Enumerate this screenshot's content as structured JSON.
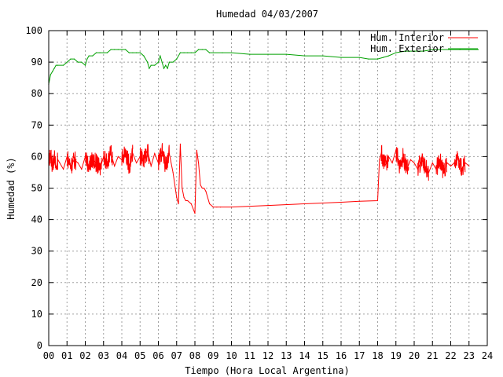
{
  "chart_data": {
    "type": "line",
    "title": "Humedad 04/03/2007",
    "xlabel": "Tiempo (Hora Local Argentina)",
    "ylabel": "Humedad (%)",
    "xlim": [
      0,
      24
    ],
    "ylim": [
      0,
      100
    ],
    "x_ticks": [
      "00",
      "01",
      "02",
      "03",
      "04",
      "05",
      "06",
      "07",
      "08",
      "09",
      "10",
      "11",
      "12",
      "13",
      "14",
      "15",
      "16",
      "17",
      "18",
      "19",
      "20",
      "21",
      "22",
      "23",
      "24"
    ],
    "y_ticks": [
      "0",
      "10",
      "20",
      "30",
      "40",
      "50",
      "60",
      "70",
      "80",
      "90",
      "100"
    ],
    "grid": true,
    "legend_position": "top-right",
    "series": [
      {
        "name": "Hum. Interior",
        "color": "#ff0000",
        "x": [
          0.0,
          0.1,
          0.2,
          0.3,
          0.4,
          0.5,
          0.6,
          0.8,
          1.0,
          1.2,
          1.4,
          1.6,
          1.8,
          2.0,
          2.2,
          2.4,
          2.6,
          2.8,
          3.0,
          3.2,
          3.4,
          3.6,
          3.8,
          4.0,
          4.2,
          4.4,
          4.6,
          4.8,
          5.0,
          5.2,
          5.4,
          5.6,
          5.8,
          6.0,
          6.2,
          6.4,
          6.6,
          6.8,
          7.0,
          7.1,
          7.2,
          7.3,
          7.4,
          7.5,
          7.6,
          7.8,
          8.0,
          8.1,
          8.2,
          8.3,
          8.4,
          8.5,
          8.6,
          8.8,
          9.0,
          9.2,
          9.4,
          10.0,
          12.0,
          14.0,
          16.0,
          17.0,
          18.0,
          18.1,
          18.2,
          18.4,
          18.6,
          18.8,
          19.0,
          19.2,
          19.4,
          19.6,
          19.8,
          20.0,
          20.2,
          20.4,
          20.6,
          20.8,
          21.0,
          21.2,
          21.4,
          21.6,
          21.8,
          22.0,
          22.2,
          22.4,
          22.6,
          22.8,
          23.0
        ],
        "values": [
          58,
          61,
          57,
          60,
          56,
          59,
          58,
          56,
          60,
          57,
          59,
          58,
          56,
          60,
          57,
          59,
          58,
          56,
          60,
          58,
          61,
          57,
          60,
          59,
          62,
          57,
          61,
          58,
          60,
          59,
          62,
          57,
          61,
          58,
          62,
          57,
          61,
          55,
          47,
          45,
          64,
          50,
          47,
          46,
          46,
          45,
          42,
          62,
          58,
          51,
          50,
          50,
          49,
          45,
          44,
          44,
          44,
          44,
          44.5,
          45,
          45.5,
          45.8,
          46,
          59,
          61,
          57,
          60,
          58,
          62,
          57,
          60,
          56,
          59,
          58,
          56,
          59,
          57,
          55,
          58,
          56,
          59,
          55,
          58,
          57,
          58,
          60,
          56,
          58,
          57
        ],
        "note_band_from": 0,
        "band_ranges": [
          [
            0.0,
            0.5
          ],
          [
            1.0,
            1.5
          ],
          [
            2.0,
            2.9
          ],
          [
            3.0,
            3.5
          ],
          [
            4.0,
            4.6
          ],
          [
            5.0,
            5.5
          ],
          [
            6.0,
            6.6
          ],
          [
            18.2,
            18.6
          ],
          [
            19.0,
            19.7
          ],
          [
            20.2,
            20.8
          ],
          [
            21.2,
            21.8
          ],
          [
            22.2,
            22.8
          ]
        ]
      },
      {
        "name": "Hum. Exterior",
        "color": "#00a000",
        "x": [
          0.0,
          0.1,
          0.2,
          0.3,
          0.4,
          0.5,
          0.8,
          1.0,
          1.2,
          1.4,
          1.6,
          1.8,
          2.0,
          2.1,
          2.2,
          2.4,
          2.6,
          2.8,
          3.0,
          3.2,
          3.4,
          3.6,
          3.8,
          4.0,
          4.2,
          4.4,
          4.6,
          4.8,
          5.0,
          5.2,
          5.4,
          5.5,
          5.6,
          5.8,
          6.0,
          6.1,
          6.2,
          6.3,
          6.4,
          6.5,
          6.6,
          6.8,
          7.0,
          7.2,
          7.4,
          7.6,
          7.8,
          8.0,
          8.2,
          8.4,
          8.6,
          8.8,
          9.0,
          9.5,
          10.0,
          11.0,
          12.0,
          13.0,
          14.0,
          15.0,
          16.0,
          17.0,
          17.5,
          18.0,
          18.3,
          18.6,
          19.0,
          19.5,
          20.0,
          20.5,
          21.0,
          21.5,
          22.0,
          22.5,
          23.0,
          23.5
        ],
        "values": [
          83,
          86,
          87,
          88,
          89,
          89,
          89,
          90,
          91,
          91,
          90,
          90,
          89,
          91,
          92,
          92,
          93,
          93,
          93,
          93,
          94,
          94,
          94,
          94,
          94,
          93,
          93,
          93,
          93,
          92,
          90,
          88,
          89,
          89,
          90,
          92,
          90,
          88,
          89,
          88,
          90,
          90,
          91,
          93,
          93,
          93,
          93,
          93,
          94,
          94,
          94,
          93,
          93,
          93,
          93,
          92.5,
          92.5,
          92.5,
          92,
          92,
          91.5,
          91.5,
          91,
          91,
          91.5,
          92,
          93,
          93.5,
          93.5,
          93.5,
          94,
          94,
          94,
          94,
          94,
          94
        ]
      }
    ]
  }
}
